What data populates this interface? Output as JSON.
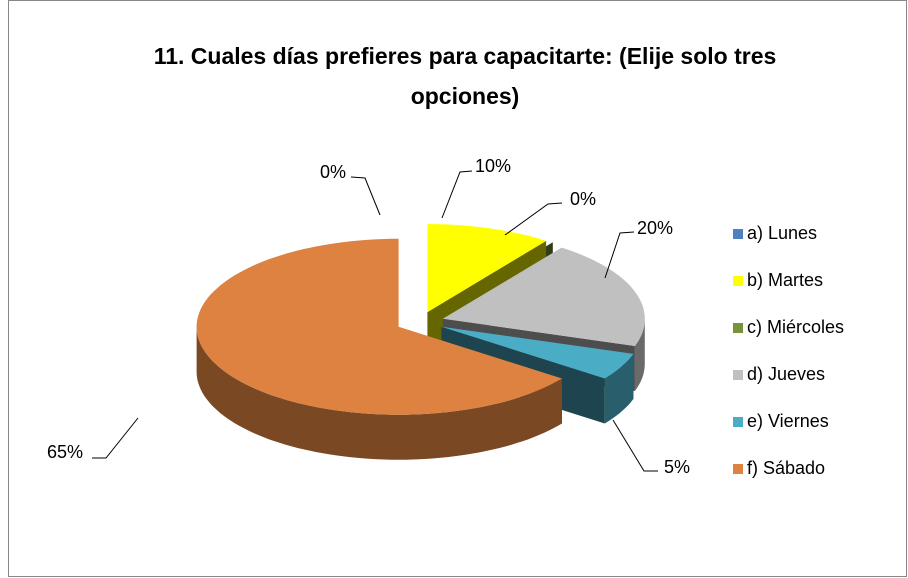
{
  "chart_data": {
    "type": "pie",
    "title": "11. Cuales días prefieres para capacitarte: (Elije solo tres opciones)",
    "categories": [
      "a) Lunes",
      "b) Martes",
      "c) Miércoles",
      "d) Jueves",
      "e) Viernes",
      "f) Sábado"
    ],
    "values": [
      0,
      10,
      0,
      20,
      5,
      65
    ],
    "value_labels": [
      "0%",
      "10%",
      "0%",
      "20%",
      "5%",
      "65%"
    ],
    "colors": [
      "#4f81bd",
      "#ffff00",
      "#77933c",
      "#c0c0c0",
      "#4bacc6",
      "#dd8240"
    ],
    "legend": "right"
  }
}
